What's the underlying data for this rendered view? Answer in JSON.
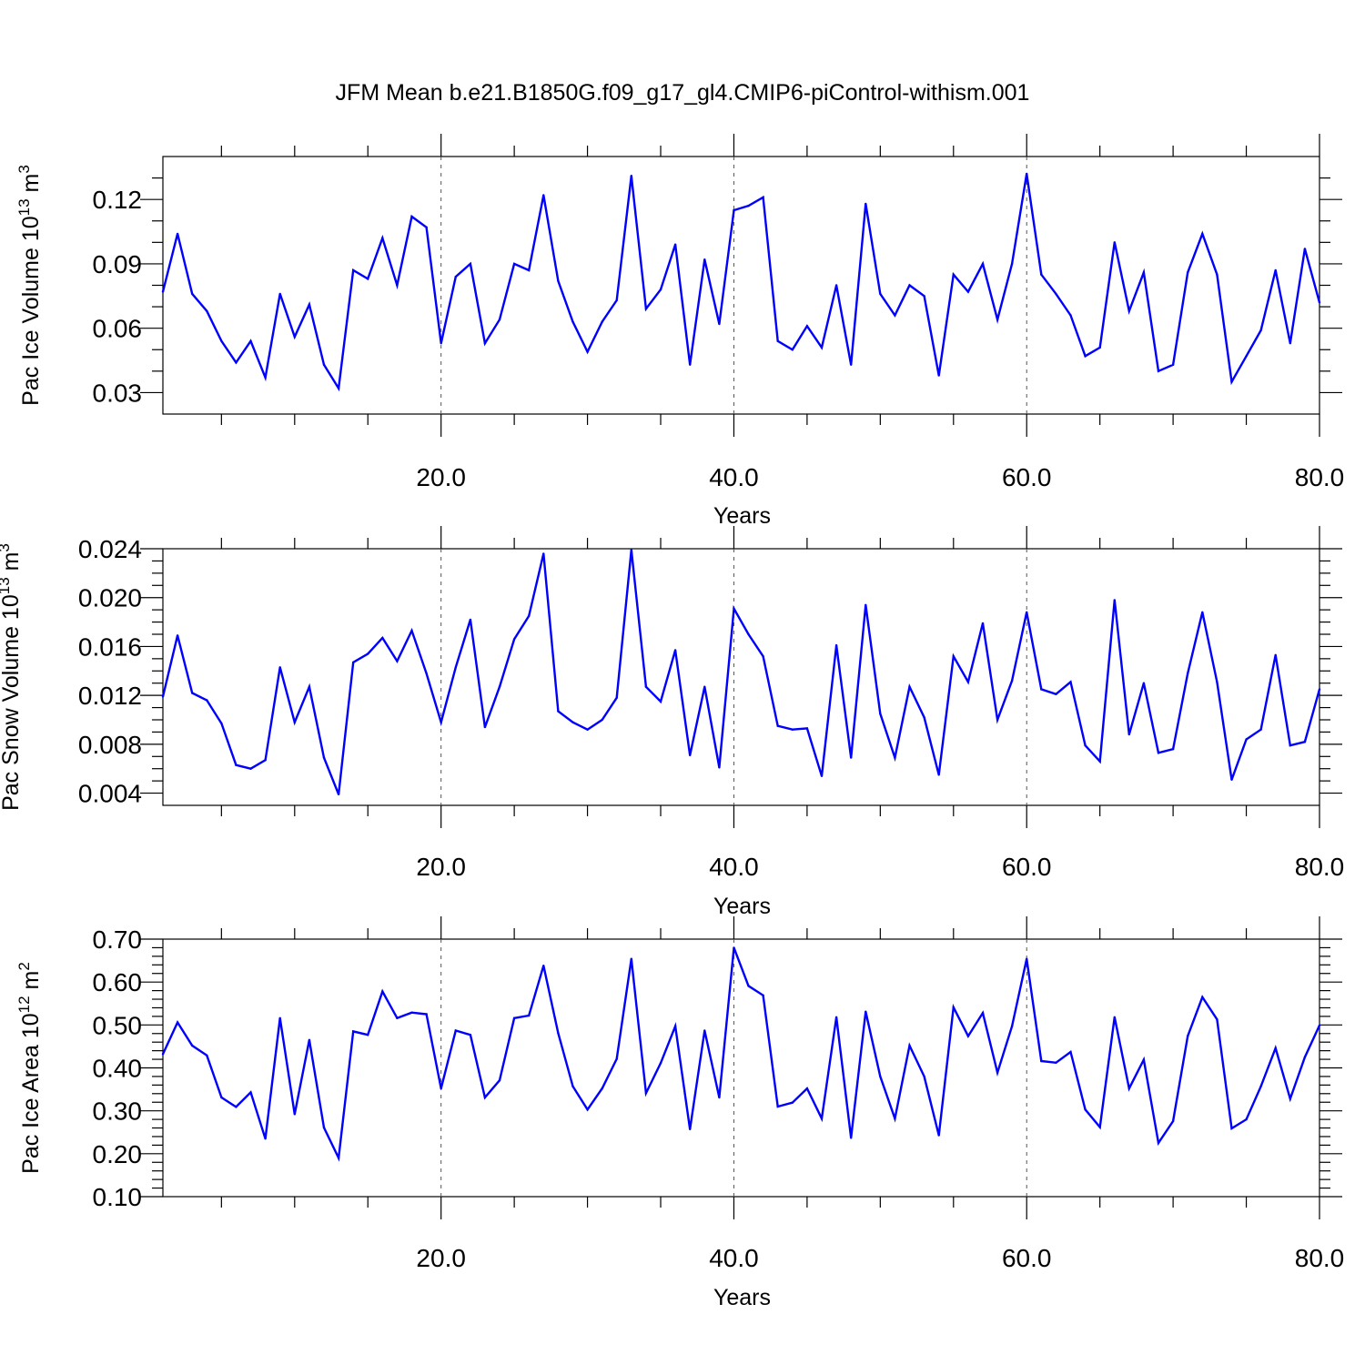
{
  "title": "JFM Mean b.e21.B1850G.f09_g17_gl4.CMIP6-piControl-withism.001",
  "colors": {
    "series": "#0000ff",
    "grid": "#555555"
  },
  "chart_data": [
    {
      "type": "line",
      "ylabel": "Pac Ice Volume 10",
      "ylabel_exp": "13",
      "ylabel_unit": " m",
      "ylabel_unit_exp": "3",
      "xlabel": "Years",
      "xlim": [
        1,
        80
      ],
      "ylim": [
        0.02,
        0.14
      ],
      "yticks": [
        0.03,
        0.06,
        0.09,
        0.12
      ],
      "ytick_labels": [
        "0.03",
        "0.06",
        "0.09",
        "0.12"
      ],
      "yminor_step": 0.01,
      "xticks": [
        20,
        40,
        60,
        80
      ],
      "xtick_labels": [
        "20.0",
        "40.0",
        "60.0",
        "80.0"
      ],
      "grid_x": [
        20,
        40,
        60
      ],
      "series": [
        {
          "x": [
            1,
            2,
            3,
            4,
            5,
            6,
            7,
            8,
            9,
            10,
            11,
            12,
            13,
            14,
            15,
            16,
            17,
            18,
            19,
            20,
            21,
            22,
            23,
            24,
            25,
            26,
            27,
            28,
            29,
            30,
            31,
            32,
            33,
            34,
            35,
            36,
            37,
            38,
            39,
            40,
            41,
            42,
            43,
            44,
            45,
            46,
            47,
            48,
            49,
            50,
            51,
            52,
            53,
            54,
            55,
            56,
            57,
            58,
            59,
            60,
            61,
            62,
            63,
            64,
            65,
            66,
            67,
            68,
            69,
            70,
            71,
            72,
            73,
            74,
            75,
            76,
            77,
            78,
            79,
            80
          ],
          "values": [
            0.077,
            0.104,
            0.076,
            0.068,
            0.054,
            0.044,
            0.054,
            0.037,
            0.076,
            0.056,
            0.071,
            0.043,
            0.032,
            0.087,
            0.083,
            0.102,
            0.08,
            0.112,
            0.107,
            0.053,
            0.084,
            0.09,
            0.053,
            0.064,
            0.09,
            0.087,
            0.122,
            0.082,
            0.063,
            0.049,
            0.063,
            0.073,
            0.131,
            0.069,
            0.078,
            0.099,
            0.043,
            0.092,
            0.062,
            0.115,
            0.117,
            0.121,
            0.054,
            0.05,
            0.061,
            0.051,
            0.08,
            0.043,
            0.118,
            0.076,
            0.066,
            0.08,
            0.075,
            0.038,
            0.085,
            0.077,
            0.09,
            0.064,
            0.09,
            0.132,
            0.085,
            0.076,
            0.066,
            0.047,
            0.051,
            0.1,
            0.068,
            0.086,
            0.04,
            0.043,
            0.086,
            0.104,
            0.085,
            0.035,
            0.047,
            0.059,
            0.087,
            0.053,
            0.097,
            0.072
          ]
        }
      ]
    },
    {
      "type": "line",
      "ylabel": "Pac Snow Volume 10",
      "ylabel_exp": "13",
      "ylabel_unit": " m",
      "ylabel_unit_exp": "3",
      "xlabel": "Years",
      "xlim": [
        1,
        80
      ],
      "ylim": [
        0.003,
        0.024
      ],
      "yticks": [
        0.004,
        0.008,
        0.012,
        0.016,
        0.02,
        0.024
      ],
      "ytick_labels": [
        "0.004",
        "0.008",
        "0.012",
        "0.016",
        "0.020",
        "0.024"
      ],
      "yminor_step": 0.001,
      "xticks": [
        20,
        40,
        60,
        80
      ],
      "xtick_labels": [
        "20.0",
        "40.0",
        "60.0",
        "80.0"
      ],
      "grid_x": [
        20,
        40,
        60
      ],
      "series": [
        {
          "x": [
            1,
            2,
            3,
            4,
            5,
            6,
            7,
            8,
            9,
            10,
            11,
            12,
            13,
            14,
            15,
            16,
            17,
            18,
            19,
            20,
            21,
            22,
            23,
            24,
            25,
            26,
            27,
            28,
            29,
            30,
            31,
            32,
            33,
            34,
            35,
            36,
            37,
            38,
            39,
            40,
            41,
            42,
            43,
            44,
            45,
            46,
            47,
            48,
            49,
            50,
            51,
            52,
            53,
            54,
            55,
            56,
            57,
            58,
            59,
            60,
            61,
            62,
            63,
            64,
            65,
            66,
            67,
            68,
            69,
            70,
            71,
            72,
            73,
            74,
            75,
            76,
            77,
            78,
            79,
            80
          ],
          "values": [
            0.0119,
            0.0169,
            0.0122,
            0.0116,
            0.0097,
            0.0063,
            0.006,
            0.0067,
            0.0143,
            0.0098,
            0.0127,
            0.0069,
            0.0039,
            0.0147,
            0.0154,
            0.0167,
            0.0148,
            0.0173,
            0.0138,
            0.0098,
            0.0143,
            0.0182,
            0.0094,
            0.0127,
            0.0166,
            0.0185,
            0.0236,
            0.0107,
            0.0098,
            0.0092,
            0.01,
            0.0118,
            0.0239,
            0.0127,
            0.0115,
            0.0157,
            0.0071,
            0.0127,
            0.0061,
            0.0191,
            0.017,
            0.0152,
            0.0095,
            0.0092,
            0.0093,
            0.0054,
            0.0161,
            0.0069,
            0.0194,
            0.0105,
            0.0069,
            0.0127,
            0.0102,
            0.0055,
            0.0152,
            0.0131,
            0.0179,
            0.01,
            0.0132,
            0.0188,
            0.0125,
            0.0121,
            0.0131,
            0.0079,
            0.0066,
            0.0198,
            0.0088,
            0.013,
            0.0073,
            0.0076,
            0.0138,
            0.0188,
            0.0131,
            0.0051,
            0.0084,
            0.0092,
            0.0153,
            0.0079,
            0.0082,
            0.0125
          ]
        }
      ]
    },
    {
      "type": "line",
      "ylabel": "Pac Ice Area 10",
      "ylabel_exp": "12",
      "ylabel_unit": " m",
      "ylabel_unit_exp": "2",
      "xlabel": "Years",
      "xlim": [
        1,
        80
      ],
      "ylim": [
        0.1,
        0.7
      ],
      "yticks": [
        0.1,
        0.2,
        0.3,
        0.4,
        0.5,
        0.6,
        0.7
      ],
      "ytick_labels": [
        "0.10",
        "0.20",
        "0.30",
        "0.40",
        "0.50",
        "0.60",
        "0.70"
      ],
      "yminor_step": 0.02,
      "xticks": [
        20,
        40,
        60,
        80
      ],
      "xtick_labels": [
        "20.0",
        "40.0",
        "60.0",
        "80.0"
      ],
      "grid_x": [
        20,
        40,
        60
      ],
      "series": [
        {
          "x": [
            1,
            2,
            3,
            4,
            5,
            6,
            7,
            8,
            9,
            10,
            11,
            12,
            13,
            14,
            15,
            16,
            17,
            18,
            19,
            20,
            21,
            22,
            23,
            24,
            25,
            26,
            27,
            28,
            29,
            30,
            31,
            32,
            33,
            34,
            35,
            36,
            37,
            38,
            39,
            40,
            41,
            42,
            43,
            44,
            45,
            46,
            47,
            48,
            49,
            50,
            51,
            52,
            53,
            54,
            55,
            56,
            57,
            58,
            59,
            60,
            61,
            62,
            63,
            64,
            65,
            66,
            67,
            68,
            69,
            70,
            71,
            72,
            73,
            74,
            75,
            76,
            77,
            78,
            79,
            80
          ],
          "values": [
            0.432,
            0.506,
            0.452,
            0.429,
            0.331,
            0.309,
            0.343,
            0.235,
            0.516,
            0.292,
            0.465,
            0.261,
            0.19,
            0.485,
            0.477,
            0.578,
            0.516,
            0.529,
            0.525,
            0.352,
            0.487,
            0.477,
            0.331,
            0.371,
            0.516,
            0.522,
            0.638,
            0.481,
            0.357,
            0.303,
            0.352,
            0.421,
            0.654,
            0.341,
            0.411,
            0.497,
            0.257,
            0.487,
            0.331,
            0.68,
            0.591,
            0.569,
            0.31,
            0.319,
            0.352,
            0.282,
            0.518,
            0.237,
            0.531,
            0.38,
            0.282,
            0.452,
            0.38,
            0.243,
            0.541,
            0.474,
            0.528,
            0.389,
            0.497,
            0.654,
            0.416,
            0.412,
            0.437,
            0.303,
            0.262,
            0.518,
            0.352,
            0.419,
            0.225,
            0.276,
            0.474,
            0.565,
            0.513,
            0.259,
            0.28,
            0.357,
            0.446,
            0.328,
            0.425,
            0.499
          ]
        }
      ]
    }
  ]
}
